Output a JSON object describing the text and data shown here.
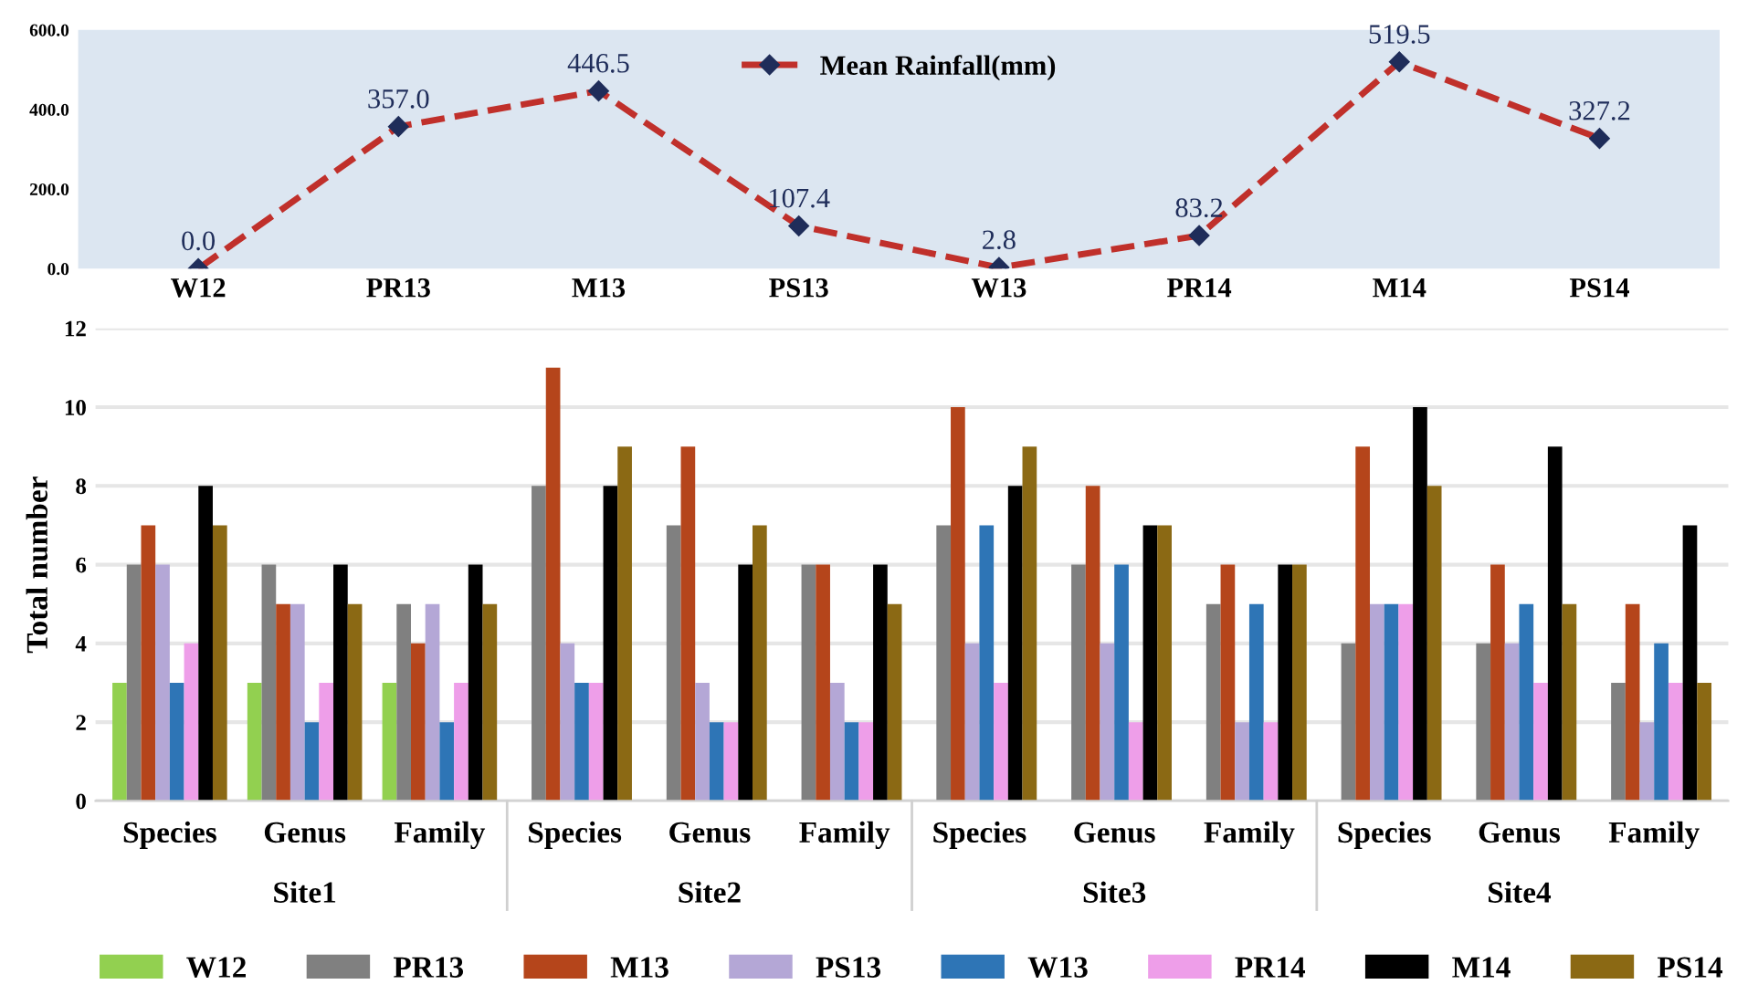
{
  "chart_data": [
    {
      "type": "line",
      "categories": [
        "W12",
        "PR13",
        "M13",
        "PS13",
        "W13",
        "PR14",
        "M14",
        "PS14"
      ],
      "series": [
        {
          "name": "Mean Rainfall(mm)",
          "color": "#c0302b",
          "values": [
            0.0,
            357.0,
            446.5,
            107.4,
            2.8,
            83.2,
            519.5,
            327.2
          ],
          "value_labels": [
            "0.0",
            "357.0",
            "446.5",
            "107.4",
            "2.8",
            "83.2",
            "519.5",
            "327.2"
          ]
        }
      ],
      "ylim": [
        0,
        600
      ],
      "yticks": [
        {
          "value": 0,
          "label": "0.0"
        },
        {
          "value": 200,
          "label": "200.0"
        },
        {
          "value": 400,
          "label": "400.0"
        },
        {
          "value": 600,
          "label": "600.0"
        }
      ],
      "legend": "top",
      "marker": "diamond",
      "line_style": "dashed",
      "grid": false
    },
    {
      "type": "bar",
      "categories": [
        "Species",
        "Genus",
        "Family",
        "Species",
        "Genus",
        "Family",
        "Species",
        "Genus",
        "Family",
        "Species",
        "Genus",
        "Family"
      ],
      "annotations": [
        "Site1",
        "Site2",
        "Site3",
        "Site4"
      ],
      "ylabel": "Total number",
      "series": [
        {
          "name": "W12",
          "color": "#92d050",
          "values": [
            3,
            3,
            3,
            null,
            null,
            null,
            null,
            null,
            null,
            null,
            null,
            null
          ]
        },
        {
          "name": "PR13",
          "color": "#808080",
          "values": [
            6,
            6,
            5,
            8,
            7,
            6,
            7,
            6,
            5,
            4,
            4,
            3
          ]
        },
        {
          "name": "M13",
          "color": "#b5451b",
          "values": [
            7,
            5,
            4,
            11,
            9,
            6,
            10,
            8,
            6,
            9,
            6,
            5
          ]
        },
        {
          "name": "PS13",
          "color": "#b4a7d6",
          "values": [
            6,
            5,
            5,
            4,
            3,
            3,
            4,
            4,
            2,
            5,
            4,
            2
          ]
        },
        {
          "name": "W13",
          "color": "#2e75b6",
          "values": [
            3,
            2,
            2,
            3,
            2,
            2,
            7,
            6,
            5,
            5,
            5,
            4
          ]
        },
        {
          "name": "PR14",
          "color": "#ee9ee9",
          "values": [
            4,
            3,
            3,
            3,
            2,
            2,
            3,
            2,
            2,
            5,
            3,
            3
          ]
        },
        {
          "name": "M14",
          "color": "#000000",
          "values": [
            8,
            6,
            6,
            8,
            6,
            6,
            8,
            7,
            6,
            10,
            9,
            7
          ]
        },
        {
          "name": "PS14",
          "color": "#8b6914",
          "values": [
            7,
            5,
            5,
            9,
            7,
            5,
            9,
            7,
            6,
            8,
            5,
            3
          ]
        }
      ],
      "ylim": [
        0,
        12
      ],
      "yticks": [
        0,
        2,
        4,
        6,
        8,
        10,
        12
      ],
      "grid": "y",
      "legend": "bottom"
    }
  ]
}
